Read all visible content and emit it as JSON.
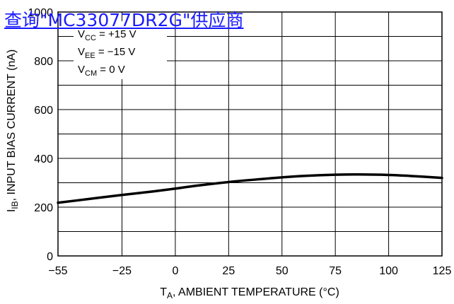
{
  "overlay": {
    "link_text": "查询\"MC33077DR2G\"供应商"
  },
  "chart_data": {
    "type": "line",
    "xlabel": {
      "main": "T",
      "sub": "A",
      "rest": ", AMBIENT TEMPERATURE (°C)"
    },
    "ylabel": {
      "main": "I",
      "sub": "IB",
      "rest": ", INPUT BIAS CURRENT (nA)"
    },
    "xlim": [
      -55,
      125
    ],
    "ylim": [
      0,
      1000
    ],
    "x_ticks": [
      "-55",
      "-25",
      "0",
      "25",
      "50",
      "75",
      "100",
      "125"
    ],
    "y_ticks": [
      "0",
      "200",
      "400",
      "600",
      "800",
      "1000"
    ],
    "grid": true,
    "conditions": [
      {
        "main": "V",
        "sub": "CC",
        "rest": " = +15 V"
      },
      {
        "main": "V",
        "sub": "EE",
        "rest": " = −15 V"
      },
      {
        "main": "V",
        "sub": "CM",
        "rest": " = 0 V"
      }
    ],
    "series": [
      {
        "x": [
          -55,
          -40,
          -25,
          -10,
          0,
          10,
          25,
          40,
          50,
          60,
          75,
          85,
          100,
          110,
          125
        ],
        "y": [
          218,
          234,
          250,
          265,
          276,
          288,
          303,
          315,
          322,
          328,
          333,
          334,
          332,
          328,
          320
        ]
      }
    ]
  }
}
